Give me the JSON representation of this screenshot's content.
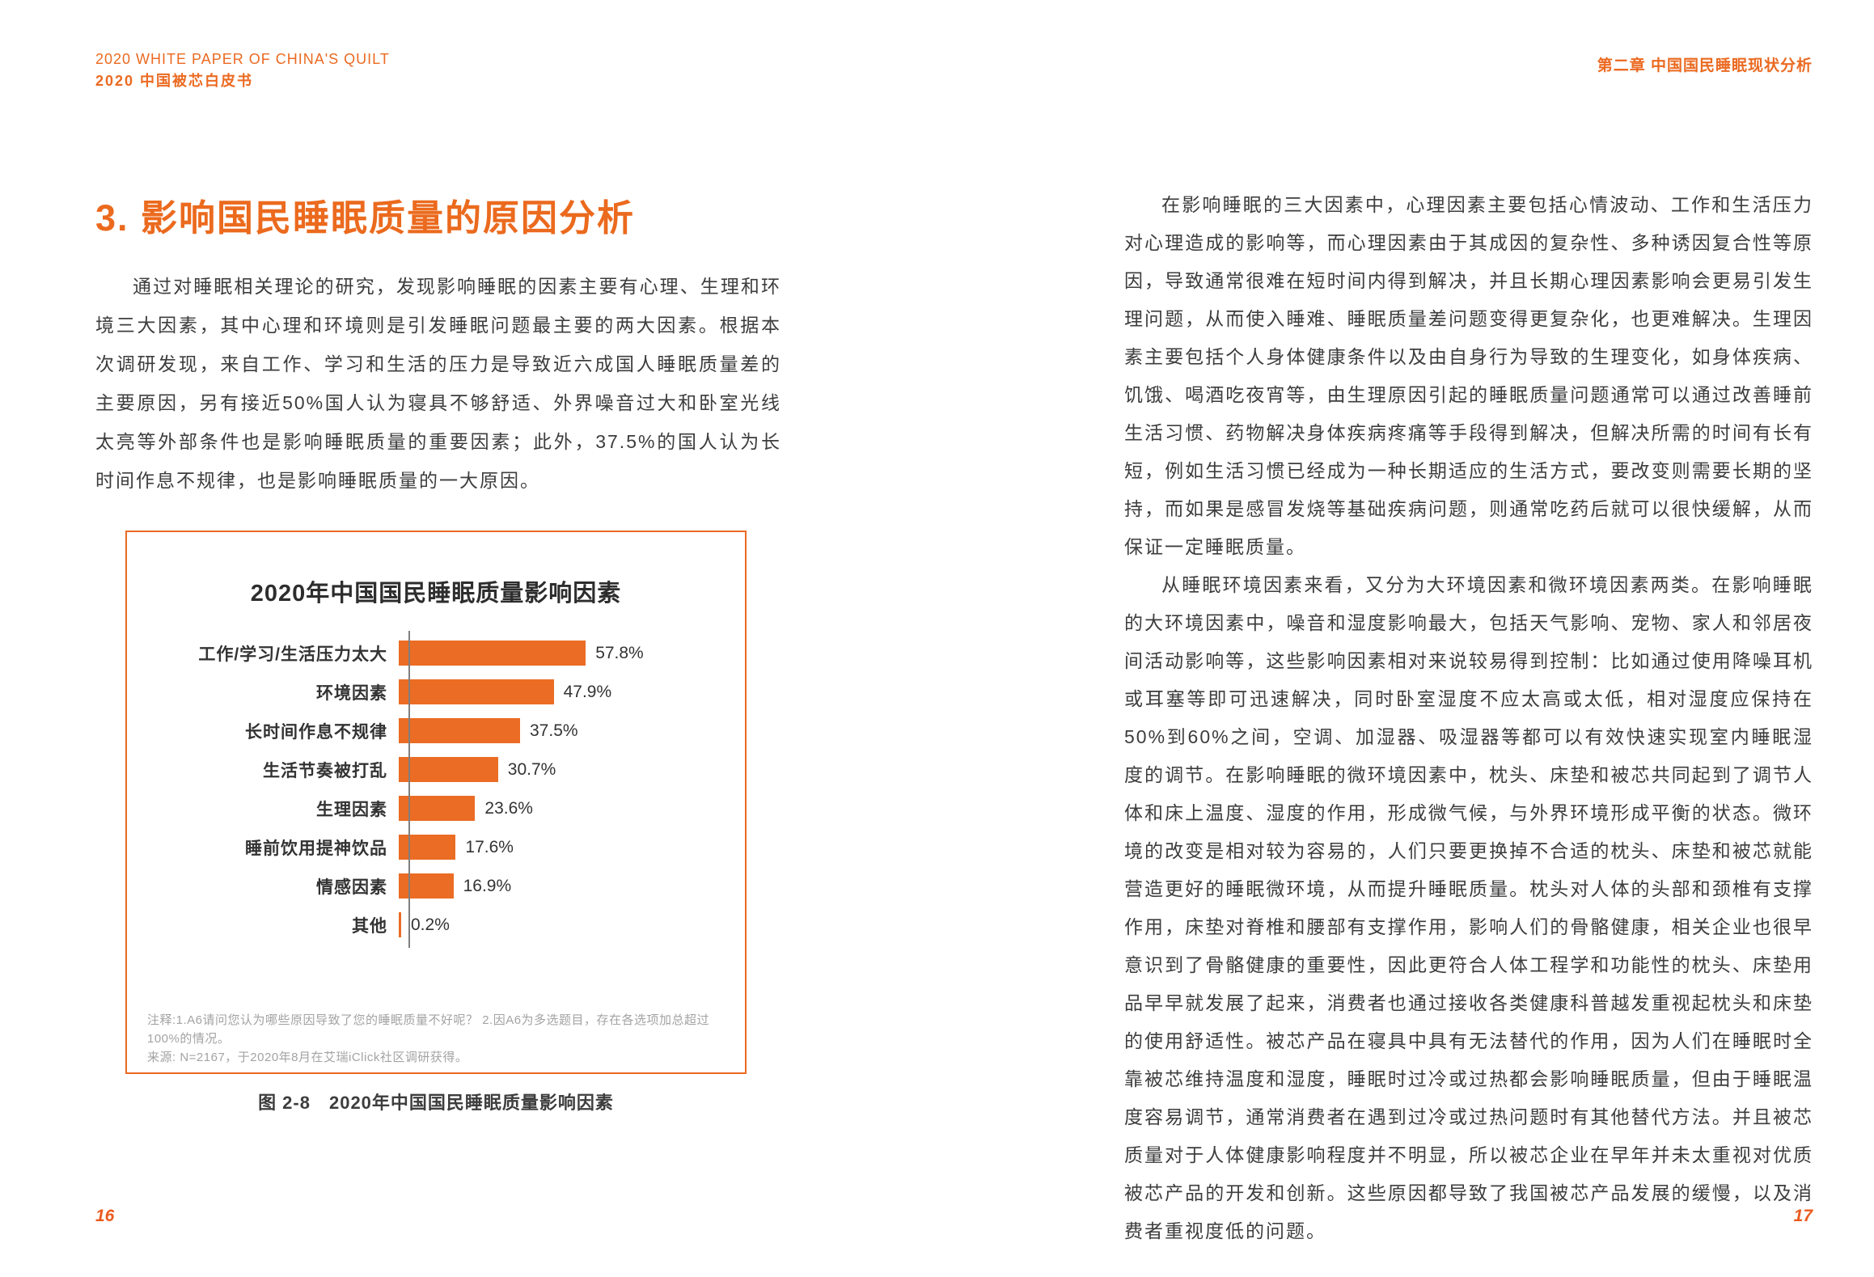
{
  "page": {
    "header_left_line1": "2020 WHITE PAPER OF CHINA'S QUILT",
    "header_left_line2": "2020 中国被芯白皮书",
    "header_right": "第二章 中国国民睡眠现状分析",
    "page_number_left": "16",
    "page_number_right": "17",
    "accent_color": "#eb6a21"
  },
  "left_page": {
    "section_title": "3. 影响国民睡眠质量的原因分析",
    "intro_paragraph": "通过对睡眠相关理论的研究，发现影响睡眠的因素主要有心理、生理和环境三大因素，其中心理和环境则是引发睡眠问题最主要的两大因素。根据本次调研发现，来自工作、学习和生活的压力是导致近六成国人睡眠质量差的主要原因，另有接近50%国人认为寝具不够舒适、外界噪音过大和卧室光线太亮等外部条件也是影响睡眠质量的重要因素；此外，37.5%的国人认为长时间作息不规律，也是影响睡眠质量的一大原因。",
    "figure_caption": "图 2-8　2020年中国国民睡眠质量影响因素"
  },
  "chart_data": {
    "type": "bar",
    "orientation": "horizontal",
    "title": "2020年中国国民睡眠质量影响因素",
    "categories": [
      "工作/学习/生活压力太大",
      "环境因素",
      "长时间作息不规律",
      "生活节奏被打乱",
      "生理因素",
      "睡前饮用提神饮品",
      "情感因素",
      "其他"
    ],
    "values": [
      57.8,
      47.9,
      37.5,
      30.7,
      23.6,
      17.6,
      16.9,
      0.2
    ],
    "value_labels": [
      "57.8%",
      "47.9%",
      "37.5%",
      "30.7%",
      "23.6%",
      "17.6%",
      "16.9%",
      "0.2%"
    ],
    "xlim": [
      0,
      60
    ],
    "grid": false,
    "legend": "none",
    "bar_color": "#eb6c24",
    "notes": "注释:1.A6请问您认为哪些原因导致了您的睡眠质量不好呢？ 2.因A6为多选题目，存在各选项加总超过100%的情况。",
    "source": "来源: N=2167，于2020年8月在艾瑞iClick社区调研获得。"
  },
  "right_page": {
    "paragraph1": "在影响睡眠的三大因素中，心理因素主要包括心情波动、工作和生活压力对心理造成的影响等，而心理因素由于其成因的复杂性、多种诱因复合性等原因，导致通常很难在短时间内得到解决，并且长期心理因素影响会更易引发生理问题，从而使入睡难、睡眠质量差问题变得更复杂化，也更难解决。生理因素主要包括个人身体健康条件以及由自身行为导致的生理变化，如身体疾病、饥饿、喝酒吃夜宵等，由生理原因引起的睡眠质量问题通常可以通过改善睡前生活习惯、药物解决身体疾病疼痛等手段得到解决，但解决所需的时间有长有短，例如生活习惯已经成为一种长期适应的生活方式，要改变则需要长期的坚持，而如果是感冒发烧等基础疾病问题，则通常吃药后就可以很快缓解，从而保证一定睡眠质量。",
    "paragraph2": "从睡眠环境因素来看，又分为大环境因素和微环境因素两类。在影响睡眠的大环境因素中，噪音和湿度影响最大，包括天气影响、宠物、家人和邻居夜间活动影响等，这些影响因素相对来说较易得到控制：比如通过使用降噪耳机或耳塞等即可迅速解决，同时卧室湿度不应太高或太低，相对湿度应保持在50%到60%之间，空调、加湿器、吸湿器等都可以有效快速实现室内睡眠湿度的调节。在影响睡眠的微环境因素中，枕头、床垫和被芯共同起到了调节人体和床上温度、湿度的作用，形成微气候，与外界环境形成平衡的状态。微环境的改变是相对较为容易的，人们只要更换掉不合适的枕头、床垫和被芯就能营造更好的睡眠微环境，从而提升睡眠质量。枕头对人体的头部和颈椎有支撑作用，床垫对脊椎和腰部有支撑作用，影响人们的骨骼健康，相关企业也很早意识到了骨骼健康的重要性，因此更符合人体工程学和功能性的枕头、床垫用品早早就发展了起来，消费者也通过接收各类健康科普越发重视起枕头和床垫的使用舒适性。被芯产品在寝具中具有无法替代的作用，因为人们在睡眠时全靠被芯维持温度和湿度，睡眠时过冷或过热都会影响睡眠质量，但由于睡眠温度容易调节，通常消费者在遇到过冷或过热问题时有其他替代方法。并且被芯质量对于人体健康影响程度并不明显，所以被芯企业在早年并未太重视对优质被芯产品的开发和创新。这些原因都导致了我国被芯产品发展的缓慢，以及消费者重视度低的问题。"
  }
}
